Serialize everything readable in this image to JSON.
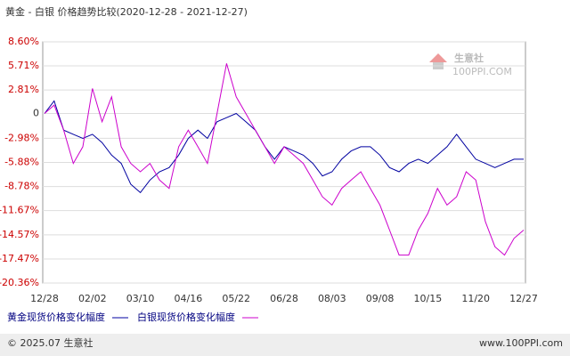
{
  "chart_data": {
    "type": "line",
    "title": "黄金 - 白银 价格趋势比较(2020-12-28 - 2021-12-27)",
    "categories": [
      "12/28",
      null,
      null,
      null,
      null,
      "02/02",
      null,
      null,
      null,
      null,
      "03/10",
      null,
      null,
      null,
      null,
      "04/16",
      null,
      null,
      null,
      null,
      "05/22",
      null,
      null,
      null,
      null,
      "06/28",
      null,
      null,
      null,
      null,
      "08/03",
      null,
      null,
      null,
      null,
      "09/08",
      null,
      null,
      null,
      null,
      "10/15",
      null,
      null,
      null,
      null,
      "11/20",
      null,
      null,
      null,
      null,
      "12/27"
    ],
    "series": [
      {
        "name": "黄金现货价格变化幅度",
        "color": "#0000a0",
        "values": [
          0,
          1.5,
          -2,
          -2.5,
          -3,
          -2.5,
          -3.5,
          -5,
          -6,
          -8.5,
          -9.5,
          -8,
          -7,
          -6.5,
          -5,
          -3,
          -2,
          -3,
          -1,
          -0.5,
          0,
          -1,
          -2,
          -4,
          -5.5,
          -4,
          -4.5,
          -5,
          -6,
          -7.5,
          -7,
          -5.5,
          -4.5,
          -4,
          -4,
          -5,
          -6.5,
          -7,
          -6,
          -5.5,
          -6,
          -5,
          -4,
          -2.5,
          -4,
          -5.5,
          -6,
          -6.5,
          -6,
          -5.5,
          -5.5
        ]
      },
      {
        "name": "白银现货价格变化幅度",
        "color": "#cc00cc",
        "values": [
          0,
          1,
          -2,
          -6,
          -4,
          3,
          -1,
          2,
          -4,
          -6,
          -7,
          -6,
          -8,
          -9,
          -4,
          -2,
          -4,
          -6,
          0,
          6,
          2,
          0,
          -2,
          -4,
          -6,
          -4,
          -5,
          -6,
          -8,
          -10,
          -11,
          -9,
          -8,
          -7,
          -9,
          -11,
          -14,
          -17,
          -17,
          -14,
          -12,
          -9,
          -11,
          -10,
          -7,
          -8,
          -13,
          -16,
          -17,
          -15,
          -14
        ]
      }
    ],
    "ylim": [
      -20.36,
      8.6
    ],
    "yticks": [
      {
        "value": 8.6,
        "label": "8.60%"
      },
      {
        "value": 5.71,
        "label": "5.71%"
      },
      {
        "value": 2.81,
        "label": "2.81%"
      },
      0,
      {
        "value": -2.98,
        "label": "-2.98%"
      },
      {
        "value": -5.88,
        "label": "-5.88%"
      },
      {
        "value": -8.78,
        "label": "-8.78%"
      },
      {
        "value": -11.67,
        "label": "-11.67%"
      },
      {
        "value": -14.57,
        "label": "-14.57%"
      },
      {
        "value": -17.47,
        "label": "-17.47%"
      },
      {
        "value": -20.36,
        "label": "-20.36%"
      }
    ],
    "grid": true,
    "watermark": {
      "name": "生意社",
      "url": "100PPI.COM"
    }
  },
  "footer": {
    "copyright": "© 2025.07 生意社",
    "site": "www.100PPI.com"
  }
}
